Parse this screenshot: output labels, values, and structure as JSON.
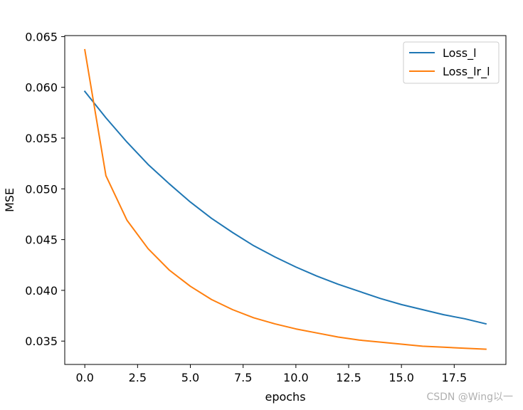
{
  "chart_data": {
    "type": "line",
    "xlabel": "epochs",
    "ylabel": "MSE",
    "xlim": [
      -0.95,
      19.95
    ],
    "ylim": [
      0.0327,
      0.0651
    ],
    "xticks": [
      0.0,
      2.5,
      5.0,
      7.5,
      10.0,
      12.5,
      15.0,
      17.5
    ],
    "xtick_labels": [
      "0.0",
      "2.5",
      "5.0",
      "7.5",
      "10.0",
      "12.5",
      "15.0",
      "17.5"
    ],
    "yticks": [
      0.035,
      0.04,
      0.045,
      0.05,
      0.055,
      0.06,
      0.065
    ],
    "ytick_labels": [
      "0.035",
      "0.040",
      "0.045",
      "0.050",
      "0.055",
      "0.060",
      "0.065"
    ],
    "grid": false,
    "legend_position": "top-right",
    "x": [
      0,
      1,
      2,
      3,
      4,
      5,
      6,
      7,
      8,
      9,
      10,
      11,
      12,
      13,
      14,
      15,
      16,
      17,
      18,
      19
    ],
    "series": [
      {
        "name": "Loss_l",
        "color": "#1f77b4",
        "values": [
          0.0596,
          0.057,
          0.0546,
          0.0524,
          0.0505,
          0.0487,
          0.0471,
          0.0457,
          0.0444,
          0.0433,
          0.0423,
          0.0414,
          0.0406,
          0.0399,
          0.0392,
          0.0386,
          0.0381,
          0.0376,
          0.0372,
          0.0367
        ]
      },
      {
        "name": "Loss_lr_l",
        "color": "#ff7f0e",
        "values": [
          0.0637,
          0.0513,
          0.0469,
          0.0441,
          0.042,
          0.0404,
          0.0391,
          0.0381,
          0.0373,
          0.0367,
          0.0362,
          0.0358,
          0.0354,
          0.0351,
          0.0349,
          0.0347,
          0.0345,
          0.0344,
          0.0343,
          0.0342
        ]
      }
    ]
  },
  "watermark": "CSDN @Wing以一"
}
